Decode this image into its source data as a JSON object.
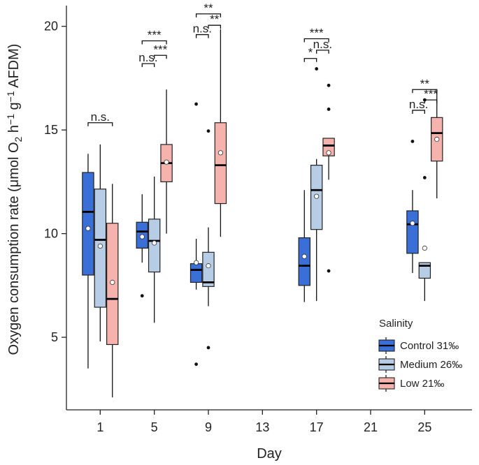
{
  "chart_data": {
    "type": "box",
    "xlabel": "Day",
    "ylabel": "Oxygen consumption rate (μmol O₂ h⁻¹ g⁻¹ AFDM)",
    "ylim": [
      1.5,
      21
    ],
    "yticks": [
      5,
      10,
      15,
      20
    ],
    "xlim": [
      -1.5,
      28.5
    ],
    "xticks": [
      1,
      5,
      9,
      13,
      17,
      21,
      25
    ],
    "grid": false,
    "legend": {
      "title": "Salinity",
      "position": "bottom-right",
      "entries": [
        "Control 31‰",
        "Medium 26‰",
        "Low 21‰"
      ]
    },
    "series": [
      {
        "name": "Control 31‰",
        "color": "#3a6fd8",
        "boxes": [
          {
            "day": 1,
            "whisker_low": 3.5,
            "q1": 8.0,
            "median": 11.05,
            "q3": 12.95,
            "whisker_high": 13.85,
            "mean": 10.25,
            "outliers": []
          },
          {
            "day": 5,
            "whisker_low": 8.6,
            "q1": 9.3,
            "median": 10.1,
            "q3": 10.55,
            "whisker_high": 11.9,
            "mean": 9.85,
            "outliers": [
              7.0
            ]
          },
          {
            "day": 9,
            "whisker_low": 7.3,
            "q1": 7.65,
            "median": 8.25,
            "q3": 8.55,
            "whisker_high": 9.75,
            "mean": 8.6,
            "outliers": [
              16.25,
              3.7
            ]
          },
          {
            "day": 17,
            "whisker_low": 6.7,
            "q1": 7.5,
            "median": 8.45,
            "q3": 9.8,
            "whisker_high": 12.1,
            "mean": 8.9,
            "outliers": []
          },
          {
            "day": 25,
            "whisker_low": 8.1,
            "q1": 9.05,
            "median": 10.45,
            "q3": 11.1,
            "whisker_high": 12.1,
            "mean": 10.5,
            "outliers": [
              14.45
            ]
          }
        ]
      },
      {
        "name": "Medium 26‰",
        "color": "#b7cde6",
        "boxes": [
          {
            "day": 1,
            "whisker_low": 4.8,
            "q1": 6.45,
            "median": 9.7,
            "q3": 12.15,
            "whisker_high": 14.3,
            "mean": 9.4,
            "outliers": []
          },
          {
            "day": 5,
            "whisker_low": 5.7,
            "q1": 8.15,
            "median": 9.65,
            "q3": 10.7,
            "whisker_high": 12.75,
            "mean": 9.55,
            "outliers": []
          },
          {
            "day": 9,
            "whisker_low": 6.5,
            "q1": 7.45,
            "median": 7.65,
            "q3": 9.1,
            "whisker_high": 10.3,
            "mean": 8.45,
            "outliers": [
              14.95,
              4.5
            ]
          },
          {
            "day": 17,
            "whisker_low": 6.75,
            "q1": 10.2,
            "median": 12.1,
            "q3": 13.3,
            "whisker_high": 13.6,
            "mean": 11.8,
            "outliers": [
              17.95
            ]
          },
          {
            "day": 25,
            "whisker_low": 6.75,
            "q1": 7.85,
            "median": 8.45,
            "q3": 8.6,
            "whisker_high": 8.6,
            "mean": 9.3,
            "outliers": [
              16.45,
              12.7
            ]
          }
        ]
      },
      {
        "name": "Low 21‰",
        "color": "#f6b2ac",
        "boxes": [
          {
            "day": 1,
            "whisker_low": 2.1,
            "q1": 4.65,
            "median": 6.85,
            "q3": 10.5,
            "whisker_high": 12.4,
            "mean": 7.65,
            "outliers": []
          },
          {
            "day": 5,
            "whisker_low": 10.0,
            "q1": 12.5,
            "median": 13.4,
            "q3": 14.3,
            "whisker_high": 16.95,
            "mean": 13.45,
            "outliers": []
          },
          {
            "day": 9,
            "whisker_low": 9.85,
            "q1": 11.45,
            "median": 13.3,
            "q3": 15.35,
            "whisker_high": 19.85,
            "mean": 13.9,
            "outliers": []
          },
          {
            "day": 17,
            "whisker_low": 12.6,
            "q1": 13.75,
            "median": 14.25,
            "q3": 14.6,
            "whisker_high": 14.6,
            "mean": 13.9,
            "outliers": [
              17.15,
              16.0,
              8.2
            ]
          },
          {
            "day": 25,
            "whisker_low": 11.7,
            "q1": 13.5,
            "median": 14.85,
            "q3": 15.6,
            "whisker_high": 16.95,
            "mean": 14.55,
            "outliers": []
          }
        ]
      }
    ],
    "significance": [
      {
        "day": 1,
        "from": "Control 31‰",
        "to": "Low 21‰",
        "label": "n.s.",
        "y": 15.35
      },
      {
        "day": 5,
        "from": "Control 31‰",
        "to": "Low 21‰",
        "label": "***",
        "y": 19.3
      },
      {
        "day": 5,
        "from": "Control 31‰",
        "to": "Medium 26‰",
        "label": "n.s.",
        "y": 18.2
      },
      {
        "day": 5,
        "from": "Medium 26‰",
        "to": "Low 21‰",
        "label": "***",
        "y": 18.6
      },
      {
        "day": 9,
        "from": "Control 31‰",
        "to": "Low 21‰",
        "label": "**",
        "y": 20.6
      },
      {
        "day": 9,
        "from": "Control 31‰",
        "to": "Medium 26‰",
        "label": "n.s.",
        "y": 19.6
      },
      {
        "day": 9,
        "from": "Medium 26‰",
        "to": "Low 21‰",
        "label": "**",
        "y": 20.05
      },
      {
        "day": 17,
        "from": "Control 31‰",
        "to": "Low 21‰",
        "label": "***",
        "y": 19.4
      },
      {
        "day": 17,
        "from": "Control 31‰",
        "to": "Medium 26‰",
        "label": "*",
        "y": 18.45
      },
      {
        "day": 17,
        "from": "Medium 26‰",
        "to": "Low 21‰",
        "label": "n.s.",
        "y": 18.85
      },
      {
        "day": 25,
        "from": "Control 31‰",
        "to": "Low 21‰",
        "label": "**",
        "y": 16.95
      },
      {
        "day": 25,
        "from": "Control 31‰",
        "to": "Medium 26‰",
        "label": "n.s.",
        "y": 15.95
      },
      {
        "day": 25,
        "from": "Medium 26‰",
        "to": "Low 21‰",
        "label": "***",
        "y": 16.45
      }
    ]
  }
}
